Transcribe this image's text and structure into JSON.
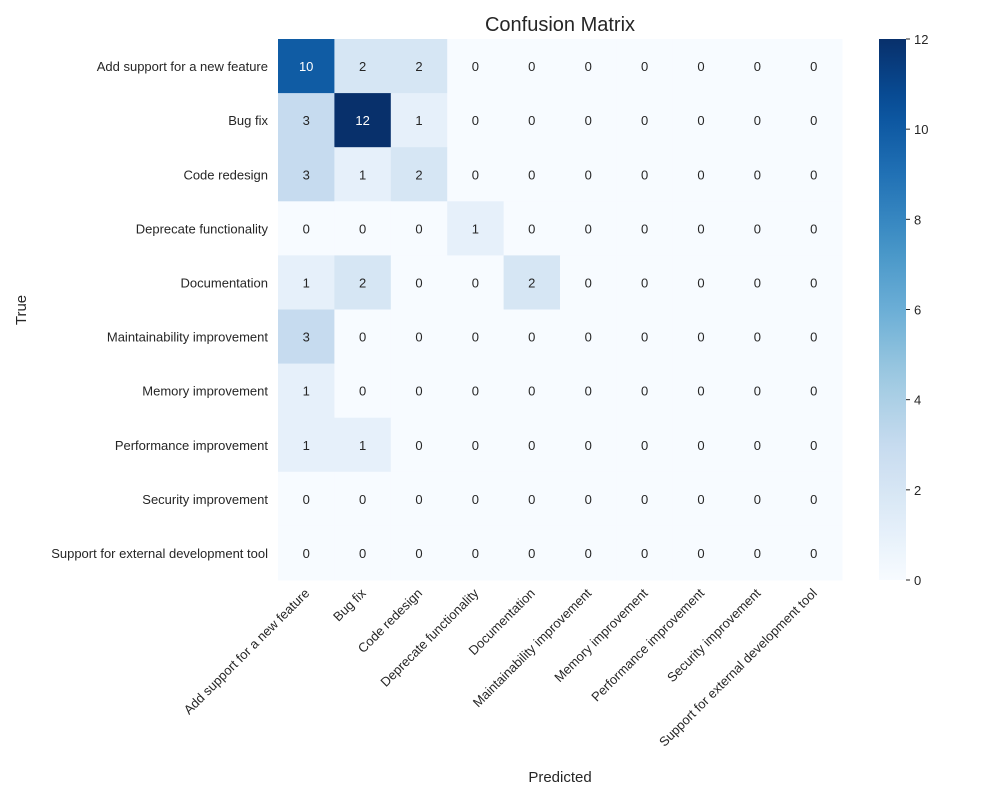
{
  "chart_data": {
    "type": "heatmap",
    "title": "Confusion Matrix",
    "xlabel": "Predicted",
    "ylabel": "True",
    "row_labels": [
      "Add support for a new feature",
      "Bug fix",
      "Code redesign",
      "Deprecate functionality",
      "Documentation",
      "Maintainability improvement",
      "Memory improvement",
      "Performance improvement",
      "Security improvement",
      "Support for external development tool"
    ],
    "col_labels": [
      "Add support for a new feature",
      "Bug fix",
      "Code redesign",
      "Deprecate functionality",
      "Documentation",
      "Maintainability improvement",
      "Memory improvement",
      "Performance improvement",
      "Security improvement",
      "Support for external development tool"
    ],
    "values": [
      [
        10,
        2,
        2,
        0,
        0,
        0,
        0,
        0,
        0,
        0
      ],
      [
        3,
        12,
        1,
        0,
        0,
        0,
        0,
        0,
        0,
        0
      ],
      [
        3,
        1,
        2,
        0,
        0,
        0,
        0,
        0,
        0,
        0
      ],
      [
        0,
        0,
        0,
        1,
        0,
        0,
        0,
        0,
        0,
        0
      ],
      [
        1,
        2,
        0,
        0,
        2,
        0,
        0,
        0,
        0,
        0
      ],
      [
        3,
        0,
        0,
        0,
        0,
        0,
        0,
        0,
        0,
        0
      ],
      [
        1,
        0,
        0,
        0,
        0,
        0,
        0,
        0,
        0,
        0
      ],
      [
        1,
        1,
        0,
        0,
        0,
        0,
        0,
        0,
        0,
        0
      ],
      [
        0,
        0,
        0,
        0,
        0,
        0,
        0,
        0,
        0,
        0
      ],
      [
        0,
        0,
        0,
        0,
        0,
        0,
        0,
        0,
        0,
        0
      ]
    ],
    "colorbar": {
      "range": [
        0,
        12
      ],
      "ticks": [
        0,
        2,
        4,
        6,
        8,
        10,
        12
      ],
      "colormap": "Blues"
    }
  }
}
